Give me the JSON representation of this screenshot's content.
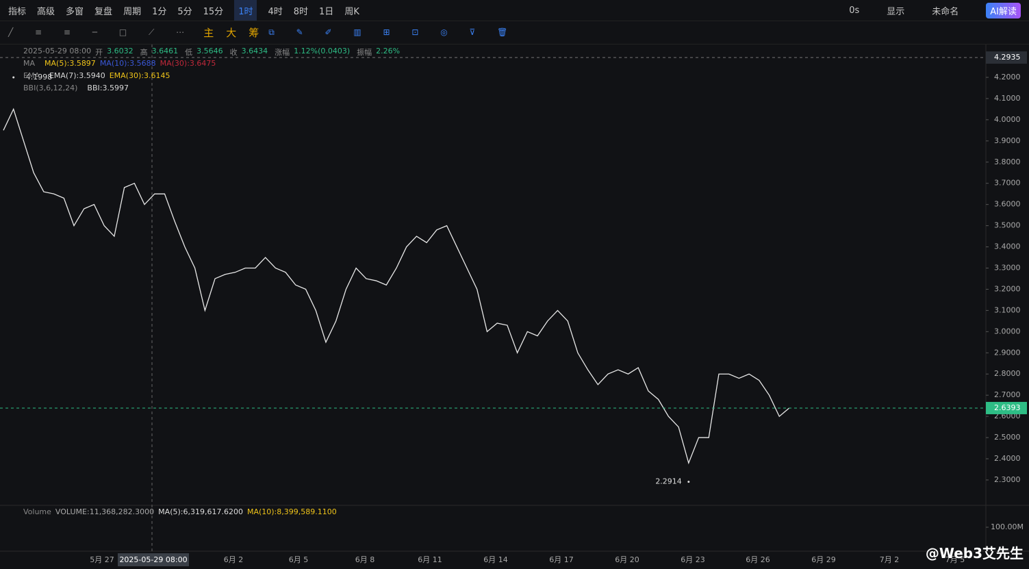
{
  "toolbar": {
    "left": [
      "指标",
      "高级",
      "多窗",
      "复盘",
      "周期",
      "1分",
      "5分",
      "15分",
      "1时",
      "4时",
      "8时",
      "1日",
      "周K"
    ],
    "active_index": 8,
    "right": [
      "0s",
      "显示",
      "未命名",
      "AI解读"
    ]
  },
  "drawing_toolbar": [
    "主",
    "大",
    "筹"
  ],
  "info": {
    "time": "2025-05-29 08:00",
    "fields": [
      {
        "label": "开",
        "value": "3.6032"
      },
      {
        "label": "高",
        "value": "3.6461"
      },
      {
        "label": "低",
        "value": "3.5646"
      },
      {
        "label": "收",
        "value": "3.6434"
      },
      {
        "label": "涨幅",
        "value": "1.12%(0.0403)"
      },
      {
        "label": "振幅",
        "value": "2.26%"
      }
    ]
  },
  "indicators": {
    "ma": {
      "name": "MA",
      "items": [
        {
          "text": "MA(5):3.5897",
          "color": "#f0c419"
        },
        {
          "text": "MA(10):3.5688",
          "color": "#3a58d8"
        },
        {
          "text": "MA(30):3.6475",
          "color": "#c0283a"
        }
      ]
    },
    "ema": {
      "name": "EMA",
      "items": [
        {
          "text": "EMA(7):3.5940",
          "color": "#d8d8d8"
        },
        {
          "text": "EMA(30):3.6145",
          "color": "#f0c419"
        }
      ]
    },
    "bbi": {
      "name": "BBI(3,6,12,24)",
      "items": [
        {
          "text": "BBI:3.5997",
          "color": "#d8d8d8"
        }
      ]
    }
  },
  "chart_data": {
    "type": "line",
    "color": "#e8e8e8",
    "values": [
      3.95,
      4.05,
      3.9,
      3.75,
      3.66,
      3.65,
      3.63,
      3.5,
      3.58,
      3.6,
      3.5,
      3.45,
      3.68,
      3.7,
      3.6,
      3.65,
      3.65,
      3.52,
      3.4,
      3.3,
      3.1,
      3.25,
      3.27,
      3.28,
      3.3,
      3.3,
      3.35,
      3.3,
      3.28,
      3.22,
      3.2,
      3.1,
      2.95,
      3.05,
      3.2,
      3.3,
      3.25,
      3.24,
      3.22,
      3.3,
      3.4,
      3.45,
      3.42,
      3.48,
      3.5,
      3.4,
      3.3,
      3.2,
      3.0,
      3.04,
      3.03,
      2.9,
      3.0,
      2.98,
      3.05,
      3.1,
      3.05,
      2.9,
      2.82,
      2.75,
      2.8,
      2.82,
      2.8,
      2.83,
      2.72,
      2.68,
      2.6,
      2.55,
      2.38,
      2.5,
      2.5,
      2.8,
      2.8,
      2.78,
      2.8,
      2.77,
      2.7,
      2.6,
      2.64
    ],
    "ylim": [
      2.19,
      4.355
    ],
    "yticks": [
      {
        "value": 4.2,
        "label": "4.2000"
      },
      {
        "value": 4.1,
        "label": "4.1000"
      },
      {
        "value": 4.0,
        "label": "4.0000"
      },
      {
        "value": 3.9,
        "label": "3.9000"
      },
      {
        "value": 3.8,
        "label": "3.8000"
      },
      {
        "value": 3.7,
        "label": "3.7000"
      },
      {
        "value": 3.6,
        "label": "3.6000"
      },
      {
        "value": 3.5,
        "label": "3.5000"
      },
      {
        "value": 3.4,
        "label": "3.4000"
      },
      {
        "value": 3.3,
        "label": "3.3000"
      },
      {
        "value": 3.2,
        "label": "3.2000"
      },
      {
        "value": 3.1,
        "label": "3.1000"
      },
      {
        "value": 3.0,
        "label": "3.0000"
      },
      {
        "value": 2.9,
        "label": "2.9000"
      },
      {
        "value": 2.8,
        "label": "2.8000"
      },
      {
        "value": 2.7,
        "label": "2.7000"
      },
      {
        "value": 2.6,
        "label": "2.6000"
      },
      {
        "value": 2.5,
        "label": "2.5000"
      },
      {
        "value": 2.4,
        "label": "2.4000"
      },
      {
        "value": 2.3,
        "label": "2.3000"
      }
    ],
    "current_price": 2.6393,
    "crosshair_price": 4.2935,
    "high_marker": 4.1998,
    "low_marker": 2.2914,
    "x_labels": [
      "5月 27",
      "6月 2",
      "6月 5",
      "6月 8",
      "6月 11",
      "6月 14",
      "6月 17",
      "6月 20",
      "6月 23",
      "6月 26",
      "6月 29",
      "7月 2",
      "7月 5"
    ],
    "crosshair_time": "2025-05-29 08:00"
  },
  "volume": {
    "title": "Volume",
    "items": [
      {
        "text": "VOLUME:11,368,282.3000",
        "color": "#aaa"
      },
      {
        "text": "MA(5):6,319,617.6200",
        "color": "#ddd"
      },
      {
        "text": "MA(10):8,399,589.1100",
        "color": "#f0c419"
      }
    ],
    "ytick": {
      "value": 100000000,
      "label": "100.00M"
    }
  },
  "watermark": "@Web3艾先生"
}
